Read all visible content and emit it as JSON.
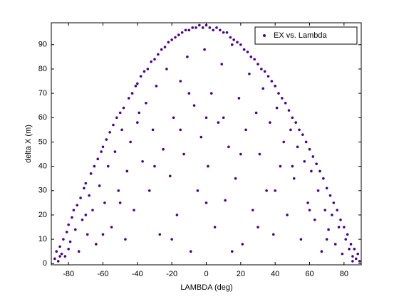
{
  "chart_data": {
    "type": "scatter",
    "xlabel": "LAMBDA (deg)",
    "ylabel": "delta X (m)",
    "xlim": [
      -90,
      90
    ],
    "ylim": [
      -0.5,
      99
    ],
    "xticks": [
      -80,
      -60,
      -40,
      -20,
      0,
      20,
      40,
      60,
      80
    ],
    "yticks": [
      0,
      10,
      20,
      30,
      40,
      50,
      60,
      70,
      80,
      90
    ],
    "legend": "upper right",
    "series": [
      {
        "name": "EX vs. Lambda",
        "color": "#4b0082",
        "x": [
          -88,
          -87,
          -86,
          -85,
          -84,
          -83,
          -82,
          -81,
          -80,
          -80,
          -79,
          -78,
          -77,
          -76,
          -75,
          -74,
          -73,
          -72,
          -71,
          -70,
          -69,
          -68,
          -67,
          -66,
          -65,
          -64,
          -63,
          -62,
          -61,
          -60,
          -59,
          -58,
          -57,
          -56,
          -55,
          -54,
          -53,
          -52,
          -51,
          -50,
          -49,
          -48,
          -47,
          -46,
          -45,
          -44,
          -43,
          -42,
          -41,
          -40,
          -39,
          -38,
          -37,
          -36,
          -35,
          -34,
          -33,
          -32,
          -31,
          -30,
          -29,
          -28,
          -27,
          -26,
          -25,
          -24,
          -23,
          -22,
          -21,
          -20,
          -19,
          -18,
          -17,
          -16,
          -15,
          -14,
          -13,
          -12,
          -11,
          -10,
          -9,
          -8,
          -7,
          -6,
          -5,
          -4,
          -3,
          -2,
          -1,
          0,
          1,
          2,
          3,
          4,
          5,
          6,
          7,
          8,
          9,
          10,
          11,
          12,
          13,
          14,
          15,
          16,
          17,
          18,
          19,
          20,
          21,
          22,
          23,
          24,
          25,
          26,
          27,
          28,
          29,
          30,
          31,
          32,
          33,
          34,
          35,
          36,
          37,
          38,
          39,
          40,
          41,
          42,
          43,
          44,
          45,
          46,
          47,
          48,
          49,
          50,
          51,
          52,
          53,
          54,
          55,
          56,
          57,
          58,
          59,
          60,
          61,
          62,
          63,
          64,
          65,
          66,
          67,
          68,
          69,
          70,
          71,
          72,
          73,
          74,
          75,
          76,
          77,
          78,
          79,
          80,
          81,
          82,
          83,
          84,
          85,
          86,
          87,
          88,
          89,
          -30,
          -20,
          -10,
          0,
          10,
          20,
          30,
          -50,
          50,
          -70,
          70,
          0,
          -40,
          40,
          -60,
          60,
          -85,
          85,
          -15,
          15
        ],
        "values": [
          2,
          5,
          1,
          7,
          4,
          10,
          3,
          13,
          16,
          6,
          9,
          19,
          22,
          14,
          24,
          5,
          27,
          18,
          31,
          33,
          12,
          28,
          37,
          22,
          40,
          8,
          43,
          32,
          46,
          48,
          25,
          51,
          40,
          54,
          15,
          57,
          46,
          60,
          30,
          62,
          55,
          64,
          10,
          38,
          68,
          50,
          70,
          22,
          73,
          74,
          62,
          77,
          42,
          79,
          66,
          80,
          30,
          83,
          55,
          84,
          73,
          86,
          12,
          88,
          47,
          89,
          80,
          91,
          36,
          92,
          60,
          93,
          20,
          94,
          75,
          95,
          45,
          96,
          85,
          96,
          5,
          97,
          65,
          97,
          30,
          98,
          52,
          97,
          88,
          98,
          40,
          97,
          70,
          96,
          15,
          97,
          58,
          96,
          82,
          95,
          26,
          95,
          48,
          93,
          90,
          92,
          35,
          91,
          68,
          90,
          8,
          88,
          55,
          87,
          78,
          85,
          22,
          84,
          62,
          82,
          45,
          80,
          72,
          79,
          30,
          77,
          58,
          75,
          12,
          73,
          64,
          70,
          40,
          68,
          50,
          66,
          20,
          63,
          55,
          60,
          35,
          58,
          48,
          55,
          10,
          53,
          42,
          50,
          25,
          47,
          38,
          44,
          18,
          41,
          30,
          38,
          5,
          35,
          22,
          31,
          14,
          28,
          20,
          25,
          8,
          22,
          15,
          18,
          4,
          15,
          10,
          12,
          6,
          8,
          3,
          6,
          2,
          4,
          1,
          40,
          10,
          70,
          25,
          60,
          45,
          15,
          25,
          40,
          20,
          10,
          60,
          58,
          30,
          12,
          22,
          3,
          1,
          55,
          5
        ]
      }
    ]
  }
}
